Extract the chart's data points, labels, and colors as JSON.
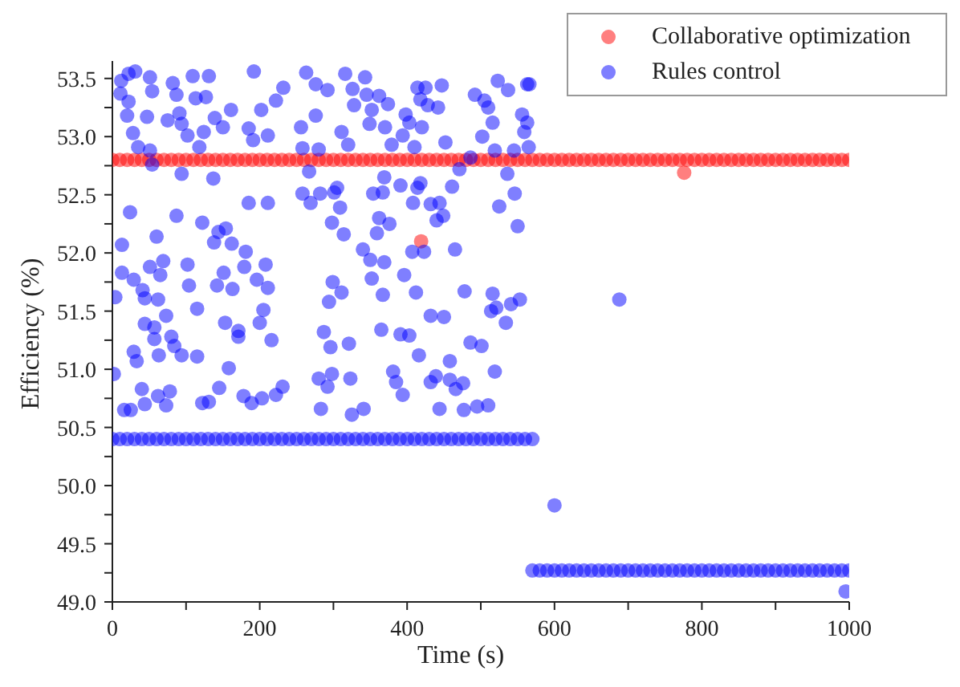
{
  "chart_data": {
    "type": "scatter",
    "xlabel": "Time (s)",
    "ylabel": "Efficiency (%)",
    "xlim": [
      0,
      1000
    ],
    "xticks": [
      0,
      {
        "value": 100,
        "label": null
      },
      200,
      {
        "value": 300,
        "label": null
      },
      400,
      {
        "value": 500,
        "label": null
      },
      600,
      {
        "value": 700,
        "label": null
      },
      800,
      {
        "value": 900,
        "label": null
      },
      1000
    ],
    "ylim": [
      49.0,
      53.65
    ],
    "yticks": [
      {
        "value": 49,
        "label": "49.0"
      },
      {
        "value": 49.25,
        "label": null
      },
      49.5,
      {
        "value": 49.75,
        "label": null
      },
      {
        "value": 50,
        "label": "50.0"
      },
      {
        "value": 50.25,
        "label": null
      },
      50.5,
      {
        "value": 50.75,
        "label": null
      },
      {
        "value": 51,
        "label": "51.0"
      },
      {
        "value": 51.25,
        "label": null
      },
      51.5,
      {
        "value": 51.75,
        "label": null
      },
      {
        "value": 52,
        "label": "52.0"
      },
      {
        "value": 52.25,
        "label": null
      },
      52.5,
      {
        "value": 52.75,
        "label": null
      },
      {
        "value": 53,
        "label": "53.0"
      },
      {
        "value": 53.25,
        "label": null
      },
      53.5
    ],
    "grid": false,
    "legend": "top right",
    "marker": "circle",
    "series": [
      {
        "name": "Collaborative optimization",
        "color": "#ff0000",
        "x": [
          0,
          10,
          20,
          30,
          40,
          50,
          60,
          70,
          80,
          90,
          100,
          110,
          120,
          130,
          140,
          150,
          160,
          170,
          180,
          190,
          200,
          210,
          220,
          230,
          240,
          250,
          260,
          270,
          280,
          290,
          300,
          310,
          320,
          330,
          340,
          350,
          360,
          370,
          380,
          390,
          400,
          410,
          420,
          430,
          440,
          450,
          460,
          470,
          480,
          490,
          500,
          510,
          520,
          530,
          540,
          550,
          560,
          570,
          580,
          590,
          600,
          610,
          620,
          630,
          640,
          650,
          660,
          670,
          680,
          690,
          700,
          710,
          720,
          730,
          740,
          750,
          760,
          770,
          780,
          790,
          800,
          810,
          820,
          830,
          840,
          850,
          860,
          870,
          880,
          890,
          900,
          910,
          920,
          930,
          940,
          950,
          960,
          970,
          980,
          990,
          1000,
          419,
          776
        ],
        "values": [
          52.8,
          52.8,
          52.8,
          52.8,
          52.8,
          52.8,
          52.8,
          52.8,
          52.8,
          52.8,
          52.8,
          52.8,
          52.8,
          52.8,
          52.8,
          52.8,
          52.8,
          52.8,
          52.8,
          52.8,
          52.8,
          52.8,
          52.8,
          52.8,
          52.8,
          52.8,
          52.8,
          52.8,
          52.8,
          52.8,
          52.8,
          52.8,
          52.8,
          52.8,
          52.8,
          52.8,
          52.8,
          52.8,
          52.8,
          52.8,
          52.8,
          52.8,
          52.8,
          52.8,
          52.8,
          52.8,
          52.8,
          52.8,
          52.8,
          52.8,
          52.8,
          52.8,
          52.8,
          52.8,
          52.8,
          52.8,
          52.8,
          52.8,
          52.8,
          52.8,
          52.8,
          52.8,
          52.8,
          52.8,
          52.8,
          52.8,
          52.8,
          52.8,
          52.8,
          52.8,
          52.8,
          52.8,
          52.8,
          52.8,
          52.8,
          52.8,
          52.8,
          52.8,
          52.8,
          52.8,
          52.8,
          52.8,
          52.8,
          52.8,
          52.8,
          52.8,
          52.8,
          52.8,
          52.8,
          52.8,
          52.8,
          52.8,
          52.8,
          52.8,
          52.8,
          52.8,
          52.8,
          52.8,
          52.8,
          52.8,
          52.8,
          52.1,
          52.69
        ]
      },
      {
        "name": "Rules control",
        "color": "#0000ff",
        "x": [
          0,
          10,
          20,
          30,
          40,
          50,
          60,
          70,
          80,
          90,
          100,
          110,
          120,
          130,
          140,
          150,
          160,
          170,
          180,
          190,
          200,
          210,
          220,
          230,
          240,
          250,
          260,
          270,
          280,
          290,
          300,
          310,
          320,
          330,
          340,
          350,
          360,
          370,
          380,
          390,
          400,
          410,
          420,
          430,
          440,
          450,
          460,
          470,
          480,
          490,
          500,
          510,
          520,
          530,
          540,
          550,
          560,
          570,
          570,
          580,
          590,
          600,
          610,
          620,
          630,
          640,
          650,
          660,
          670,
          680,
          690,
          700,
          710,
          720,
          730,
          740,
          750,
          760,
          770,
          780,
          790,
          800,
          810,
          820,
          830,
          840,
          850,
          860,
          870,
          880,
          890,
          900,
          910,
          920,
          930,
          940,
          950,
          960,
          970,
          980,
          990,
          1000,
          600,
          688,
          995,
          12,
          22,
          31,
          51,
          82,
          109,
          131,
          192,
          263,
          11,
          54,
          87,
          113,
          127,
          232,
          222,
          276,
          292,
          22,
          20,
          47,
          75,
          91,
          94,
          139,
          161,
          150,
          202,
          211,
          185,
          191,
          124,
          102,
          28,
          35,
          51,
          118,
          256,
          276,
          258,
          280,
          54,
          94,
          137,
          267,
          258,
          282,
          185,
          211,
          269,
          24,
          87,
          122,
          60,
          144,
          154,
          138,
          162,
          181,
          13,
          298,
          69,
          51,
          102,
          13,
          29,
          65,
          41,
          44,
          62,
          4,
          104,
          151,
          179,
          208,
          142,
          163,
          196,
          211,
          115,
          73,
          44,
          57,
          57,
          80,
          84,
          94,
          63,
          29,
          33,
          153,
          171,
          171,
          200,
          205,
          216,
          115,
          158,
          2,
          40,
          44,
          16,
          25,
          62,
          73,
          78,
          122,
          131,
          145,
          178,
          189,
          203,
          222,
          231,
          280,
          292,
          283,
          298,
          299,
          301,
          316,
          343,
          326,
          345,
          328,
          362,
          374,
          352,
          349,
          370,
          398,
          403,
          414,
          425,
          447,
          418,
          428,
          442,
          420,
          311,
          320,
          379,
          394,
          410,
          452,
          492,
          505,
          523,
          537,
          563,
          510,
          516,
          502,
          556,
          563,
          559,
          565,
          519,
          545,
          486,
          471,
          536,
          369,
          354,
          367,
          391,
          418,
          414,
          461,
          546,
          305,
          309,
          362,
          376,
          359,
          314,
          408,
          432,
          444,
          440,
          449,
          525,
          550,
          407,
          423,
          465,
          340,
          350,
          369,
          352,
          396,
          412,
          367,
          294,
          311,
          432,
          450,
          478,
          516,
          521,
          514,
          541,
          553,
          534,
          365,
          391,
          403,
          287,
          321,
          296,
          486,
          501,
          416,
          458,
          381,
          385,
          394,
          432,
          439,
          458,
          476,
          466,
          519,
          323,
          341,
          325,
          444,
          477,
          495,
          510,
          566
        ],
        "values": [
          50.4,
          50.4,
          50.4,
          50.4,
          50.4,
          50.4,
          50.4,
          50.4,
          50.4,
          50.4,
          50.4,
          50.4,
          50.4,
          50.4,
          50.4,
          50.4,
          50.4,
          50.4,
          50.4,
          50.4,
          50.4,
          50.4,
          50.4,
          50.4,
          50.4,
          50.4,
          50.4,
          50.4,
          50.4,
          50.4,
          50.4,
          50.4,
          50.4,
          50.4,
          50.4,
          50.4,
          50.4,
          50.4,
          50.4,
          50.4,
          50.4,
          50.4,
          50.4,
          50.4,
          50.4,
          50.4,
          50.4,
          50.4,
          50.4,
          50.4,
          50.4,
          50.4,
          50.4,
          50.4,
          50.4,
          50.4,
          50.4,
          50.4,
          49.27,
          49.27,
          49.27,
          49.27,
          49.27,
          49.27,
          49.27,
          49.27,
          49.27,
          49.27,
          49.27,
          49.27,
          49.27,
          49.27,
          49.27,
          49.27,
          49.27,
          49.27,
          49.27,
          49.27,
          49.27,
          49.27,
          49.27,
          49.27,
          49.27,
          49.27,
          49.27,
          49.27,
          49.27,
          49.27,
          49.27,
          49.27,
          49.27,
          49.27,
          49.27,
          49.27,
          49.27,
          49.27,
          49.27,
          49.27,
          49.27,
          49.27,
          49.27,
          49.27,
          49.83,
          51.6,
          49.09,
          53.48,
          53.54,
          53.56,
          53.51,
          53.46,
          53.52,
          53.52,
          53.56,
          53.55,
          53.37,
          53.39,
          53.36,
          53.33,
          53.34,
          53.42,
          53.31,
          53.45,
          53.4,
          53.3,
          53.18,
          53.17,
          53.14,
          53.2,
          53.11,
          53.16,
          53.23,
          53.08,
          53.23,
          53.01,
          53.07,
          52.97,
          53.04,
          53.01,
          53.03,
          52.91,
          52.88,
          52.91,
          53.08,
          53.18,
          52.9,
          52.89,
          52.76,
          52.68,
          52.64,
          52.7,
          52.51,
          52.51,
          52.43,
          52.43,
          52.43,
          52.35,
          52.32,
          52.26,
          52.14,
          52.18,
          52.21,
          52.09,
          52.08,
          52.01,
          52.07,
          52.26,
          51.93,
          51.88,
          51.9,
          51.83,
          51.77,
          51.81,
          51.68,
          51.61,
          51.6,
          51.62,
          51.72,
          51.83,
          51.88,
          51.9,
          51.72,
          51.69,
          51.77,
          51.7,
          51.52,
          51.46,
          51.39,
          51.36,
          51.26,
          51.28,
          51.2,
          51.12,
          51.12,
          51.15,
          51.07,
          51.4,
          51.33,
          51.28,
          51.4,
          51.51,
          51.25,
          51.11,
          51.01,
          50.96,
          50.83,
          50.7,
          50.65,
          50.65,
          50.77,
          50.69,
          50.81,
          50.71,
          50.72,
          50.84,
          50.77,
          50.71,
          50.75,
          50.78,
          50.85,
          50.92,
          50.85,
          50.66,
          50.96,
          51.75,
          52.52,
          53.54,
          53.51,
          53.41,
          53.36,
          53.27,
          53.35,
          53.28,
          53.23,
          53.11,
          53.08,
          53.19,
          53.12,
          53.42,
          53.42,
          53.44,
          53.32,
          53.27,
          53.25,
          53.08,
          53.04,
          52.93,
          52.93,
          53.01,
          52.91,
          52.95,
          53.36,
          53.31,
          53.48,
          53.4,
          53.45,
          53.25,
          53.12,
          53.0,
          53.19,
          53.12,
          53.04,
          52.91,
          52.88,
          52.88,
          52.82,
          52.72,
          52.68,
          52.65,
          52.51,
          52.52,
          52.58,
          52.6,
          52.56,
          52.57,
          52.51,
          52.56,
          52.39,
          52.3,
          52.25,
          52.17,
          52.16,
          52.43,
          52.42,
          52.43,
          52.28,
          52.32,
          52.4,
          52.23,
          52.01,
          52.01,
          52.03,
          52.03,
          51.94,
          51.92,
          51.78,
          51.81,
          51.66,
          51.64,
          51.58,
          51.66,
          51.46,
          51.45,
          51.67,
          51.65,
          51.53,
          51.5,
          51.56,
          51.6,
          51.4,
          51.34,
          51.3,
          51.29,
          51.32,
          51.22,
          51.19,
          51.23,
          51.2,
          51.12,
          51.07,
          50.98,
          50.89,
          50.78,
          50.89,
          50.94,
          50.91,
          50.88,
          50.83,
          50.98,
          50.92,
          50.66,
          50.61,
          50.66,
          50.65,
          50.68,
          50.69,
          53.45
        ]
      }
    ]
  }
}
